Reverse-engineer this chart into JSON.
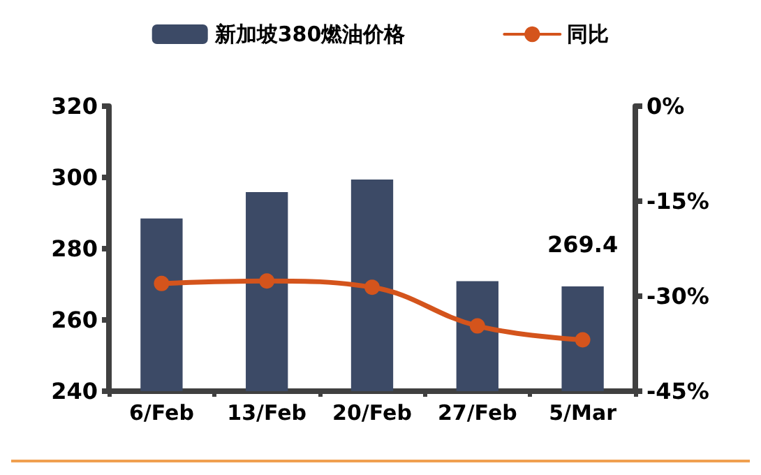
{
  "chart_data": {
    "type": "bar",
    "categories": [
      "6/Feb",
      "13/Feb",
      "20/Feb",
      "27/Feb",
      "5/Mar"
    ],
    "series": [
      {
        "name": "新加坡380燃油价格",
        "color": "#3c4a66",
        "values": [
          288.5,
          295.9,
          299.4,
          270.9,
          269.4
        ],
        "value_labels": [
          null,
          null,
          null,
          null,
          "269.4"
        ]
      },
      {
        "name": "同比",
        "type": "line",
        "axis": "y2",
        "color": "#d4541c",
        "marker": "circle",
        "values": [
          -28.0,
          -27.6,
          -28.6,
          -34.7,
          -36.9
        ]
      }
    ],
    "ylim": [
      240,
      320
    ],
    "yticks": [
      240,
      260,
      280,
      300,
      320
    ],
    "y2lim": [
      -45,
      0
    ],
    "y2ticks": [
      {
        "value": -45,
        "label": "-45%"
      },
      {
        "value": -30,
        "label": "-30%"
      },
      {
        "value": -15,
        "label": "-15%"
      },
      {
        "value": 0,
        "label": "0%"
      }
    ],
    "grid": false,
    "legend": "top"
  }
}
